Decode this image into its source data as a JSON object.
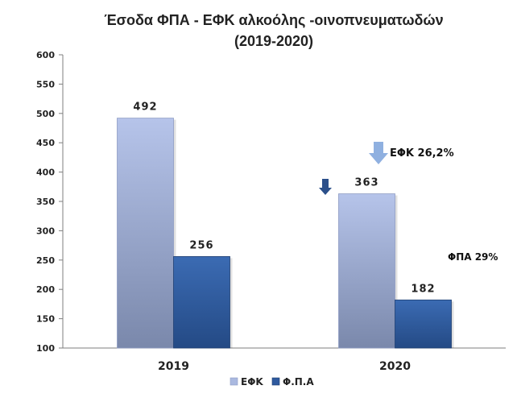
{
  "chart_data": {
    "type": "bar",
    "title_line1": "Έσοδα ΦΠΑ - ΕΦΚ αλκοόλης -οινοπνευματωδών",
    "title_line2": "(2019-2020)",
    "categories": [
      "2019",
      "2020"
    ],
    "series": [
      {
        "name": "ΕΦΚ",
        "values": [
          492,
          363
        ],
        "color": "#aab9e0"
      },
      {
        "name": "Φ.Π.Α",
        "values": [
          256,
          182
        ],
        "color": "#2f5a9e"
      }
    ],
    "data_labels": [
      "492",
      "256",
      "363",
      "182"
    ],
    "ylim": [
      100,
      600
    ],
    "yticks": [
      600,
      550,
      500,
      450,
      400,
      350,
      300,
      250,
      200,
      150,
      100
    ],
    "grid": false,
    "legend_position": "bottom",
    "annotations": [
      {
        "text": "ΕΦΚ 26,2%",
        "marker": "down-arrow-light"
      },
      {
        "text": "ΦΠΑ 29%"
      }
    ],
    "decorative_arrow": "down-arrow-dark"
  }
}
